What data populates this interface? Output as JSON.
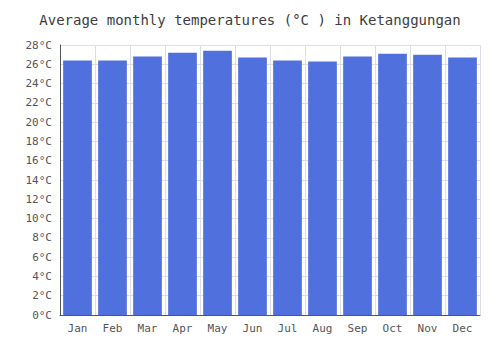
{
  "chart_data": {
    "type": "bar",
    "title": "Average monthly temperatures (°C ) in Ketanggungan",
    "categories": [
      "Jan",
      "Feb",
      "Mar",
      "Apr",
      "May",
      "Jun",
      "Jul",
      "Aug",
      "Sep",
      "Oct",
      "Nov",
      "Dec"
    ],
    "values": [
      26.4,
      26.4,
      26.8,
      27.2,
      27.4,
      26.7,
      26.4,
      26.3,
      26.8,
      27.1,
      27.0,
      26.7
    ],
    "ylim": [
      0,
      28
    ],
    "yticks": [
      {
        "value": 0,
        "label": "0°C"
      },
      {
        "value": 2,
        "label": "2°C"
      },
      {
        "value": 4,
        "label": "4°C"
      },
      {
        "value": 6,
        "label": "6°C"
      },
      {
        "value": 8,
        "label": "8°C"
      },
      {
        "value": 10,
        "label": "10°C"
      },
      {
        "value": 12,
        "label": "12°C"
      },
      {
        "value": 14,
        "label": "14°C"
      },
      {
        "value": 16,
        "label": "16°C"
      },
      {
        "value": 18,
        "label": "18°C"
      },
      {
        "value": 20,
        "label": "20°C"
      },
      {
        "value": 22,
        "label": "22°C"
      },
      {
        "value": 24,
        "label": "24°C"
      },
      {
        "value": 26,
        "label": "26°C"
      },
      {
        "value": 28,
        "label": "28°C"
      }
    ],
    "grid": true
  }
}
